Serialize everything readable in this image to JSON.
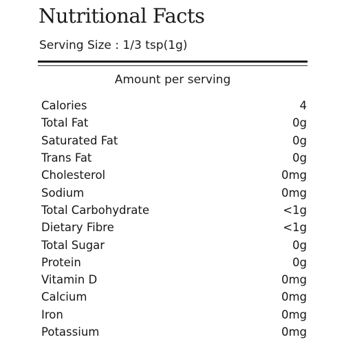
{
  "label": {
    "title": "Nutritional Facts",
    "serving_size": "Serving Size : 1/3 tsp(1g)",
    "amount_header": "Amount per serving",
    "nutrients": [
      {
        "name": "Calories",
        "value": "4"
      },
      {
        "name": "Total Fat",
        "value": "0g"
      },
      {
        "name": "Saturated Fat",
        "value": "0g"
      },
      {
        "name": "Trans Fat",
        "value": "0g"
      },
      {
        "name": "Cholesterol",
        "value": "0mg"
      },
      {
        "name": "Sodium",
        "value": "0mg"
      },
      {
        "name": "Total Carbohydrate",
        "value": "<1g"
      },
      {
        "name": "Dietary Fibre",
        "value": "<1g"
      },
      {
        "name": "Total Sugar",
        "value": "0g"
      },
      {
        "name": "Protein",
        "value": "0g"
      },
      {
        "name": "Vitamin D",
        "value": "0mg"
      },
      {
        "name": "Calcium",
        "value": "0mg"
      },
      {
        "name": "Iron",
        "value": "0mg"
      },
      {
        "name": "Potassium",
        "value": "0mg"
      }
    ]
  }
}
